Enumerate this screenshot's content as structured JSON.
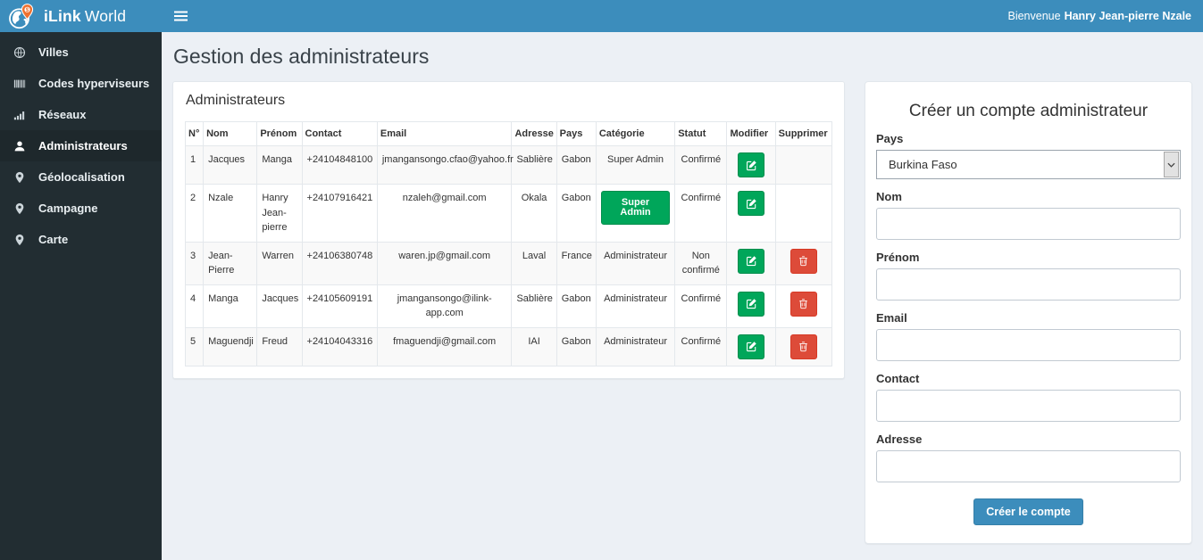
{
  "header": {
    "brand_bold": "iLink",
    "brand_rest": "World",
    "welcome_prefix": "Bienvenue",
    "welcome_name": "Hanry Jean-pierre Nzale"
  },
  "sidebar": {
    "items": [
      {
        "label": "Villes",
        "icon": "globe-icon",
        "active": false
      },
      {
        "label": "Codes hyperviseurs",
        "icon": "barcode-icon",
        "active": false
      },
      {
        "label": "Réseaux",
        "icon": "signal-icon",
        "active": false
      },
      {
        "label": "Administrateurs",
        "icon": "user-icon",
        "active": true
      },
      {
        "label": "Géolocalisation",
        "icon": "map-marker-icon",
        "active": false
      },
      {
        "label": "Campagne",
        "icon": "map-marker-icon",
        "active": false
      },
      {
        "label": "Carte",
        "icon": "map-marker-icon",
        "active": false
      }
    ]
  },
  "page": {
    "title": "Gestion des administrateurs"
  },
  "admin_panel": {
    "title": "Administrateurs",
    "table": {
      "headers": [
        "N°",
        "Nom",
        "Prénom",
        "Contact",
        "Email",
        "Adresse",
        "Pays",
        "Catégorie",
        "Statut",
        "Modifier",
        "Supprimer"
      ],
      "rows": [
        {
          "num": "1",
          "nom": "Jacques",
          "prenom": "Manga",
          "contact": "+24104848100",
          "email": "jmangansongo.cfao@yahoo.fr",
          "adresse": "Sablière",
          "pays": "Gabon",
          "categorie": "Super Admin",
          "categorie_badge": false,
          "statut": "Confirmé",
          "can_delete": false
        },
        {
          "num": "2",
          "nom": "Nzale",
          "prenom": "Hanry Jean-pierre",
          "contact": "+24107916421",
          "email": "nzaleh@gmail.com",
          "adresse": "Okala",
          "pays": "Gabon",
          "categorie": "Super Admin",
          "categorie_badge": true,
          "statut": "Confirmé",
          "can_delete": false
        },
        {
          "num": "3",
          "nom": "Jean-Pierre",
          "prenom": "Warren",
          "contact": "+24106380748",
          "email": "waren.jp@gmail.com",
          "adresse": "Laval",
          "pays": "France",
          "categorie": "Administrateur",
          "categorie_badge": false,
          "statut": "Non confirmé",
          "can_delete": true
        },
        {
          "num": "4",
          "nom": "Manga",
          "prenom": "Jacques",
          "contact": "+24105609191",
          "email": "jmangansongo@ilink-app.com",
          "adresse": "Sablière",
          "pays": "Gabon",
          "categorie": "Administrateur",
          "categorie_badge": false,
          "statut": "Confirmé",
          "can_delete": true
        },
        {
          "num": "5",
          "nom": "Maguendji",
          "prenom": "Freud",
          "contact": "+24104043316",
          "email": "fmaguendji@gmail.com",
          "adresse": "IAI",
          "pays": "Gabon",
          "categorie": "Administrateur",
          "categorie_badge": false,
          "statut": "Confirmé",
          "can_delete": true
        }
      ]
    }
  },
  "create_form": {
    "title": "Créer un compte administrateur",
    "fields": [
      {
        "label": "Pays",
        "type": "select",
        "value": "Burkina Faso"
      },
      {
        "label": "Nom",
        "type": "text",
        "value": ""
      },
      {
        "label": "Prénom",
        "type": "text",
        "value": ""
      },
      {
        "label": "Email",
        "type": "text",
        "value": ""
      },
      {
        "label": "Contact",
        "type": "text",
        "value": ""
      },
      {
        "label": "Adresse",
        "type": "text",
        "value": ""
      }
    ],
    "submit_label": "Créer le compte"
  },
  "colors": {
    "header_blue": "#3c8dbc",
    "sidebar_dark": "#222d32",
    "sidebar_active": "#1e282c",
    "content_bg": "#ecf0f5",
    "success_green": "#00a65a",
    "danger_red": "#dd4b39",
    "pin_orange": "#ee7130"
  }
}
